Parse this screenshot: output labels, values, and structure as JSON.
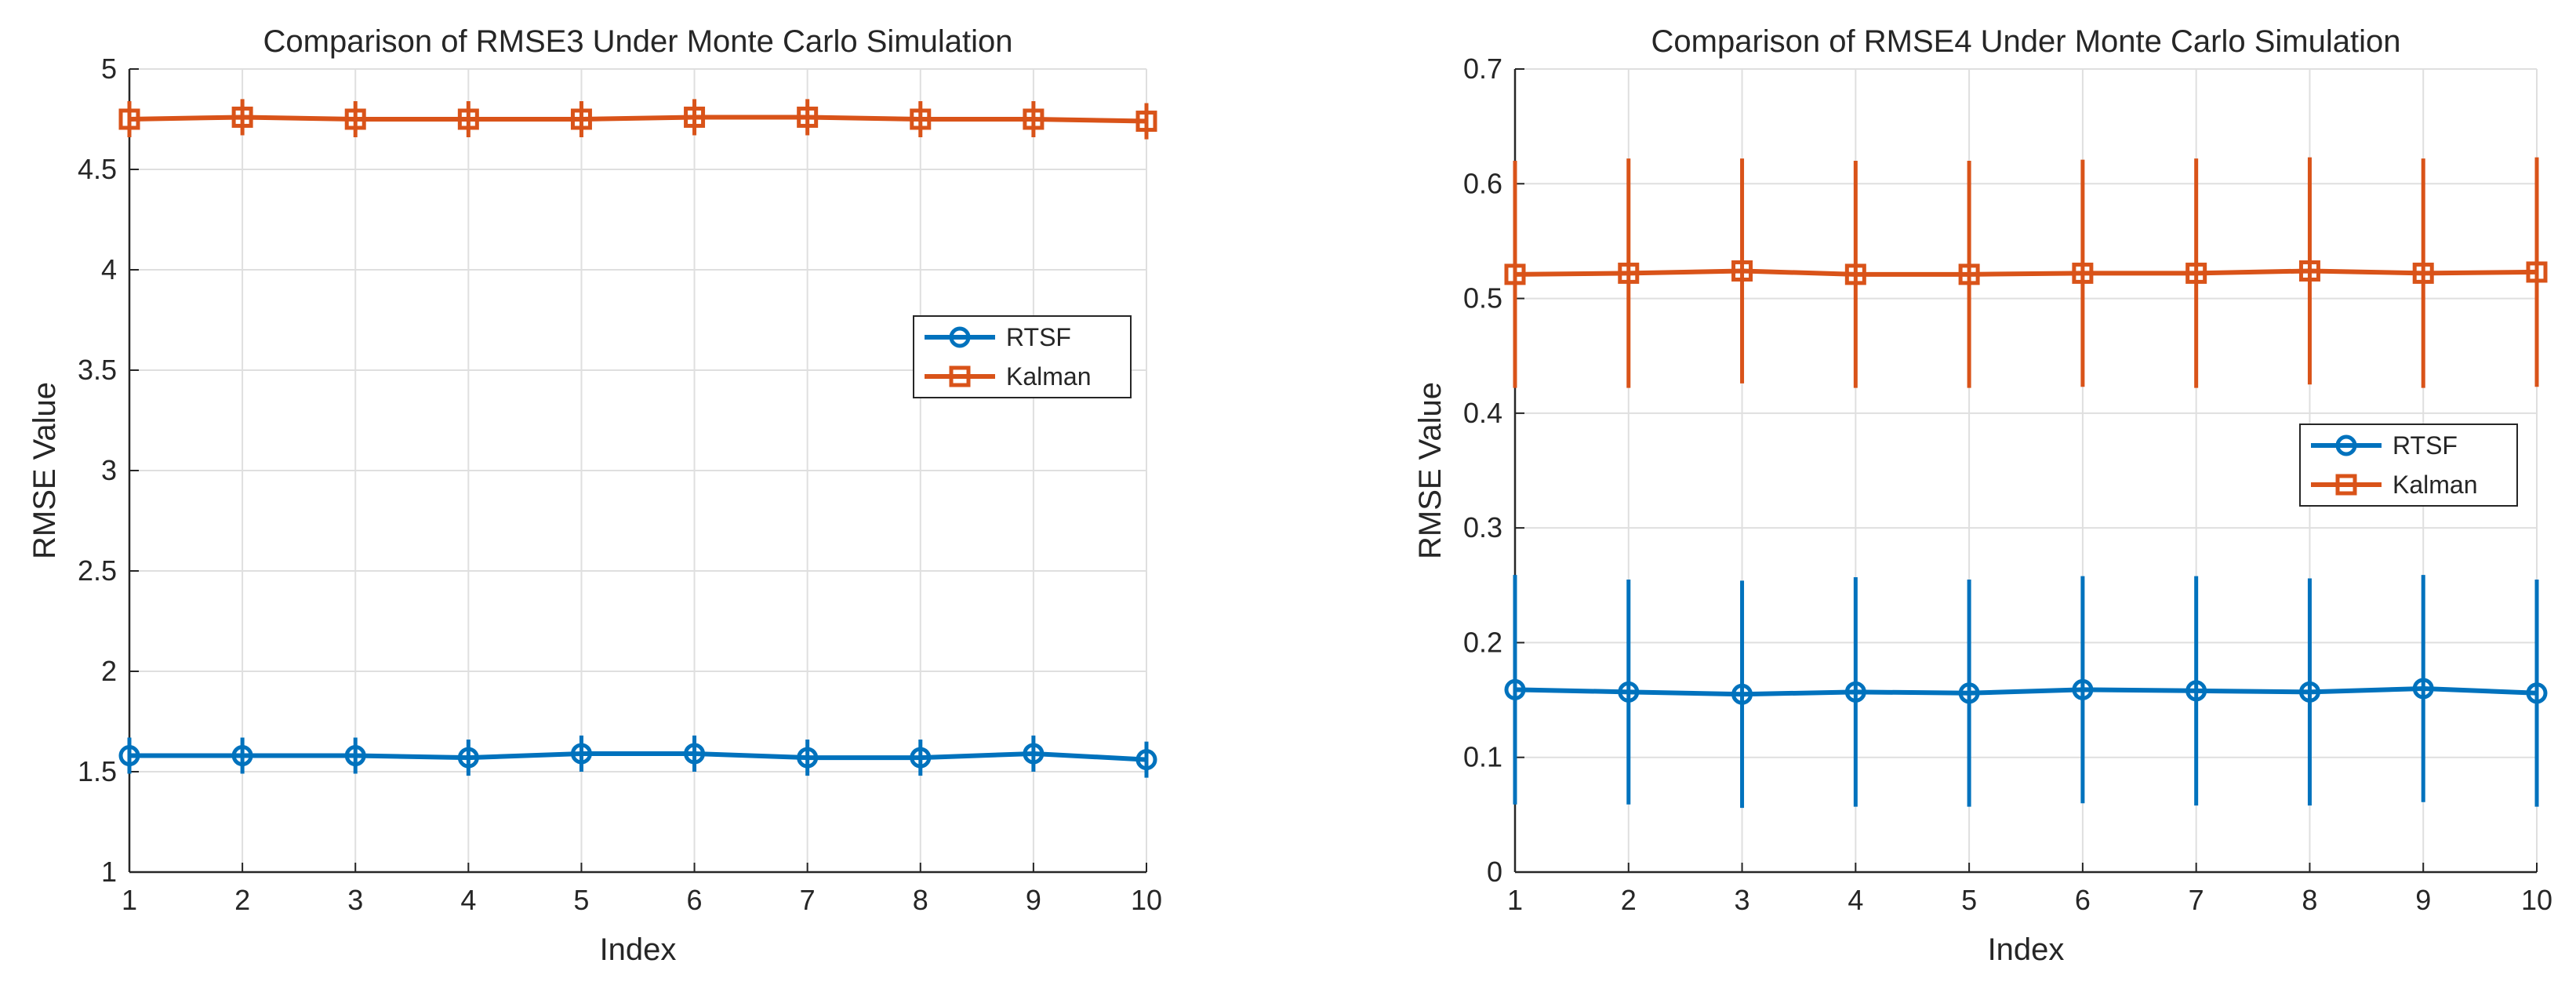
{
  "chart_data": [
    {
      "type": "line",
      "title": "Comparison of RMSE3 Under Monte Carlo Simulation",
      "xlabel": "Index",
      "ylabel": "RMSE Value",
      "xlim": [
        1,
        10
      ],
      "ylim": [
        1,
        5
      ],
      "xticks": [
        1,
        2,
        3,
        4,
        5,
        6,
        7,
        8,
        9,
        10
      ],
      "yticks": [
        1,
        1.5,
        2,
        2.5,
        3,
        3.5,
        4,
        4.5,
        5
      ],
      "ytick_labels": [
        "1",
        "1.5",
        "2",
        "2.5",
        "3",
        "3.5",
        "4",
        "4.5",
        "5"
      ],
      "grid": true,
      "legend_position": "right-middle",
      "x": [
        1,
        2,
        3,
        4,
        5,
        6,
        7,
        8,
        9,
        10
      ],
      "series": [
        {
          "name": "RTSF",
          "color": "#0072BD",
          "marker": "circle",
          "values": [
            1.58,
            1.58,
            1.58,
            1.57,
            1.59,
            1.59,
            1.57,
            1.57,
            1.59,
            1.56
          ],
          "error": [
            0.09,
            0.09,
            0.09,
            0.09,
            0.09,
            0.09,
            0.09,
            0.09,
            0.09,
            0.09
          ]
        },
        {
          "name": "Kalman",
          "color": "#D95319",
          "marker": "square",
          "values": [
            4.75,
            4.76,
            4.75,
            4.75,
            4.75,
            4.76,
            4.76,
            4.75,
            4.75,
            4.74
          ],
          "error": [
            0.09,
            0.09,
            0.09,
            0.09,
            0.09,
            0.09,
            0.09,
            0.09,
            0.09,
            0.09
          ]
        }
      ]
    },
    {
      "type": "line",
      "title": "Comparison of RMSE4 Under Monte Carlo Simulation",
      "xlabel": "Index",
      "ylabel": "RMSE Value",
      "xlim": [
        1,
        10
      ],
      "ylim": [
        0,
        0.7
      ],
      "xticks": [
        1,
        2,
        3,
        4,
        5,
        6,
        7,
        8,
        9,
        10
      ],
      "yticks": [
        0,
        0.1,
        0.2,
        0.3,
        0.4,
        0.5,
        0.6,
        0.7
      ],
      "ytick_labels": [
        "0",
        "0.1",
        "0.2",
        "0.3",
        "0.4",
        "0.5",
        "0.6",
        "0.7"
      ],
      "grid": true,
      "legend_position": "right-middle",
      "x": [
        1,
        2,
        3,
        4,
        5,
        6,
        7,
        8,
        9,
        10
      ],
      "series": [
        {
          "name": "RTSF",
          "color": "#0072BD",
          "marker": "circle",
          "values": [
            0.159,
            0.157,
            0.155,
            0.157,
            0.156,
            0.159,
            0.158,
            0.157,
            0.16,
            0.156
          ],
          "error": [
            0.1,
            0.098,
            0.099,
            0.1,
            0.099,
            0.099,
            0.1,
            0.099,
            0.099,
            0.099
          ]
        },
        {
          "name": "Kalman",
          "color": "#D95319",
          "marker": "square",
          "values": [
            0.521,
            0.522,
            0.524,
            0.521,
            0.521,
            0.522,
            0.522,
            0.524,
            0.522,
            0.523
          ],
          "error": [
            0.099,
            0.1,
            0.098,
            0.099,
            0.099,
            0.099,
            0.1,
            0.099,
            0.1,
            0.1
          ]
        }
      ]
    }
  ]
}
